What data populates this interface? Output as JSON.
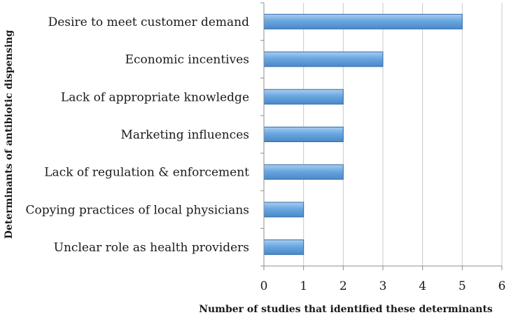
{
  "chart_data": {
    "type": "bar",
    "orientation": "horizontal",
    "categories": [
      "Desire to meet customer demand",
      "Economic incentives",
      "Lack of appropriate knowledge",
      "Marketing influences",
      "Lack of regulation & enforcement",
      "Copying practices of local physicians",
      "Unclear role as health providers"
    ],
    "values": [
      5,
      3,
      2,
      2,
      2,
      1,
      1
    ],
    "xlabel": "Number of studies that identified these determinants",
    "ylabel": "Determinants of antibiotic dispensing",
    "xlim": [
      0,
      6
    ],
    "xticks": [
      "0",
      "1",
      "2",
      "3",
      "4",
      "5",
      "6"
    ],
    "grid": "vertical",
    "bar_color": "#5b9bd5",
    "bar_edge_color": "#2f6ea8",
    "gridline_color": "#c8c8c8",
    "axis_color": "#8c8c8c"
  }
}
